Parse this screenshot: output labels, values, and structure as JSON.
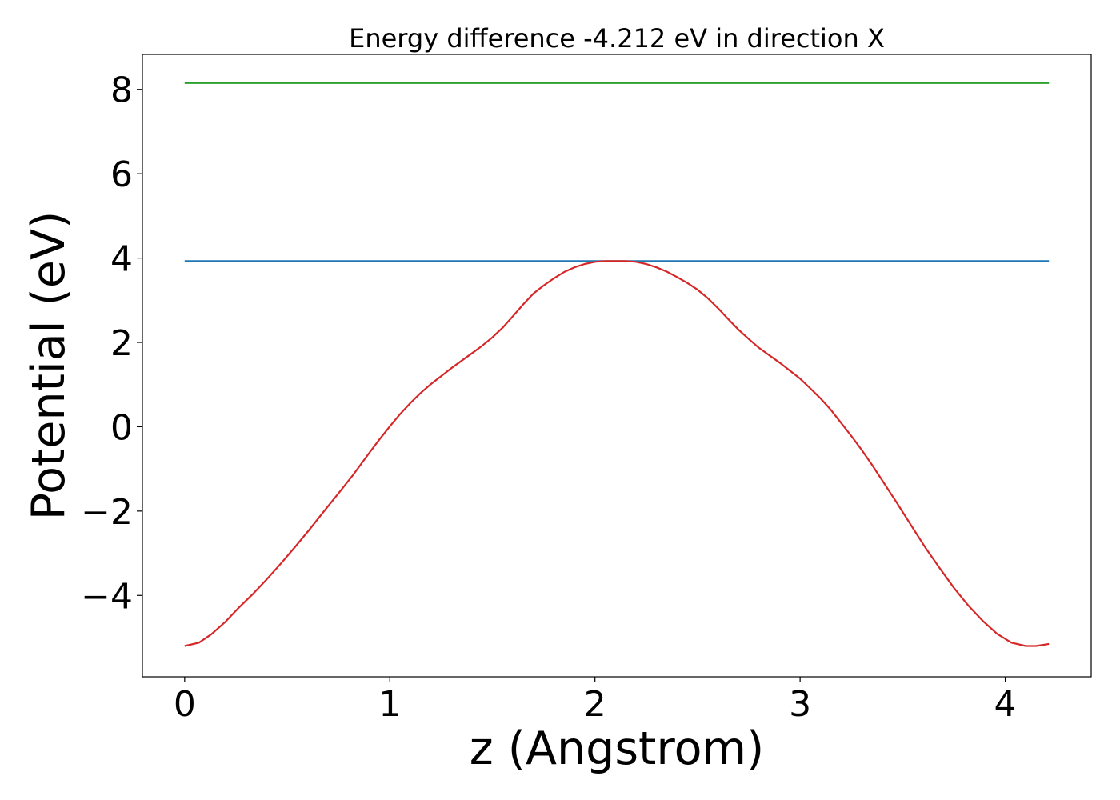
{
  "chart_data": {
    "type": "line",
    "title": "Energy difference -4.212 eV in direction X",
    "xlabel": "z (Angstrom)",
    "ylabel": "Potential (eV)",
    "xlim": [
      -0.206,
      4.419
    ],
    "ylim": [
      -5.93,
      8.83
    ],
    "xticks": [
      0,
      1,
      2,
      3,
      4
    ],
    "yticks": [
      -4,
      -2,
      0,
      2,
      4,
      6,
      8
    ],
    "xtick_labels": [
      "0",
      "1",
      "2",
      "3",
      "4"
    ],
    "ytick_labels": [
      "−4",
      "−2",
      "0",
      "2",
      "4",
      "6",
      "8"
    ],
    "grid": false,
    "legend": "none",
    "series": [
      {
        "color": "#2ca02c",
        "x": [
          0,
          4.213
        ],
        "y": [
          8.15,
          8.15
        ]
      },
      {
        "color": "#1f77b4",
        "x": [
          0,
          4.213
        ],
        "y": [
          3.93,
          3.93
        ]
      },
      {
        "color": "#d62728",
        "x": [
          0,
          0.07,
          0.13,
          0.2,
          0.26,
          0.33,
          0.4,
          0.47,
          0.54,
          0.61,
          0.68,
          0.75,
          0.82,
          0.9,
          0.95,
          1.0,
          1.05,
          1.1,
          1.15,
          1.2,
          1.3,
          1.4,
          1.45,
          1.5,
          1.55,
          1.6,
          1.65,
          1.7,
          1.75,
          1.8,
          1.85,
          1.9,
          1.95,
          2.0,
          2.05,
          2.1,
          2.15,
          2.2,
          2.25,
          2.3,
          2.35,
          2.4,
          2.45,
          2.5,
          2.55,
          2.6,
          2.65,
          2.7,
          2.75,
          2.8,
          2.9,
          3.0,
          3.05,
          3.1,
          3.15,
          3.2,
          3.25,
          3.3,
          3.35,
          3.4,
          3.47,
          3.54,
          3.61,
          3.68,
          3.75,
          3.82,
          3.89,
          3.96,
          4.03,
          4.1,
          4.15,
          4.213
        ],
        "y": [
          -5.2,
          -5.12,
          -4.92,
          -4.62,
          -4.31,
          -3.98,
          -3.62,
          -3.24,
          -2.84,
          -2.43,
          -2.0,
          -1.58,
          -1.15,
          -0.62,
          -0.3,
          0.01,
          0.3,
          0.56,
          0.8,
          1.01,
          1.39,
          1.74,
          1.92,
          2.12,
          2.35,
          2.62,
          2.9,
          3.16,
          3.35,
          3.52,
          3.67,
          3.78,
          3.86,
          3.91,
          3.93,
          3.93,
          3.93,
          3.91,
          3.86,
          3.78,
          3.68,
          3.55,
          3.41,
          3.25,
          3.05,
          2.81,
          2.55,
          2.3,
          2.08,
          1.87,
          1.52,
          1.14,
          0.91,
          0.67,
          0.4,
          0.09,
          -0.22,
          -0.55,
          -0.9,
          -1.27,
          -1.79,
          -2.33,
          -2.86,
          -3.35,
          -3.82,
          -4.24,
          -4.6,
          -4.91,
          -5.12,
          -5.2,
          -5.2,
          -5.15
        ]
      }
    ]
  }
}
